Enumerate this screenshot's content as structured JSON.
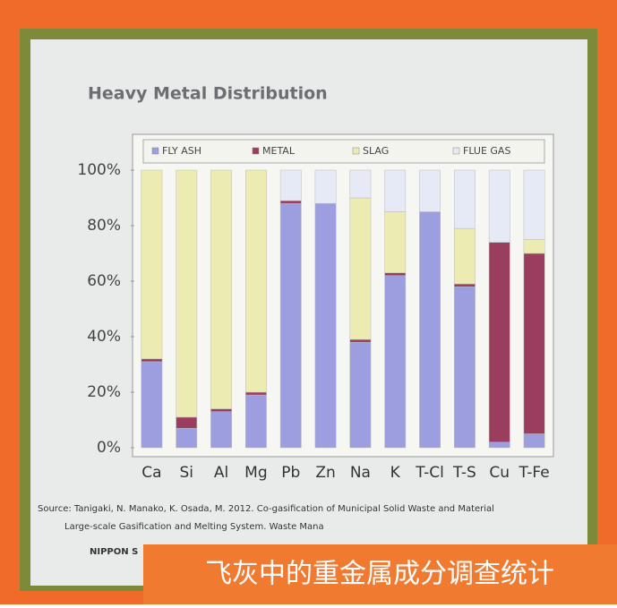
{
  "chart_data": {
    "type": "bar",
    "stacked": true,
    "title": "Heavy Metal Distribution",
    "categories": [
      "Ca",
      "Si",
      "Al",
      "Mg",
      "Pb",
      "Zn",
      "Na",
      "K",
      "T-Cl",
      "T-S",
      "Cu",
      "T-Fe"
    ],
    "series": [
      {
        "name": "FLY ASH",
        "color": "#9c9ee0",
        "values": [
          31,
          7,
          13,
          19,
          88,
          88,
          38,
          62,
          85,
          58,
          2,
          5
        ]
      },
      {
        "name": "METAL",
        "color": "#9a3d5e",
        "values": [
          1,
          4,
          1,
          1,
          1,
          0,
          1,
          1,
          0,
          1,
          72,
          65
        ]
      },
      {
        "name": "SLAG",
        "color": "#ecebb2",
        "values": [
          68,
          89,
          86,
          80,
          0,
          0,
          51,
          22,
          0,
          20,
          0,
          5
        ]
      },
      {
        "name": "FLUE GAS",
        "color": "#e6e9f6",
        "values": [
          0,
          0,
          0,
          0,
          11,
          12,
          10,
          15,
          15,
          21,
          26,
          25
        ]
      }
    ],
    "ylim": [
      0,
      100
    ],
    "yticks": [
      {
        "value": 0,
        "label": "0%"
      },
      {
        "value": 20,
        "label": "20%"
      },
      {
        "value": 40,
        "label": "40%"
      },
      {
        "value": 60,
        "label": "60%"
      },
      {
        "value": 80,
        "label": "80%"
      },
      {
        "value": 100,
        "label": "100%"
      }
    ],
    "grid": false,
    "legend": "top"
  },
  "source": [
    "Source: Tanigaki, N. Manako, K. Osada, M. 2012. Co-gasification of Municipal Solid Waste and Material",
    "Large-scale Gasification and Melting System. Waste Mana"
  ],
  "footer": "NIPPON S",
  "caption": "飞灰中的重金属成分调查统计"
}
